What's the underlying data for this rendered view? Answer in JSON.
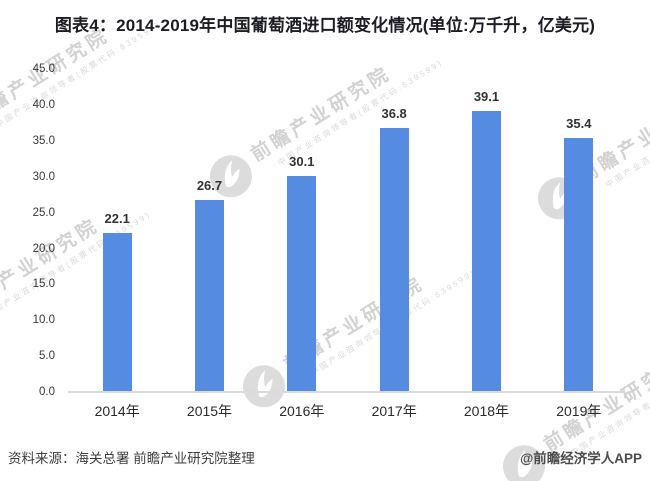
{
  "title": "图表4：2014-2019年中国葡萄酒进口额变化情况(单位:万千升，亿美元)",
  "chart_data": {
    "type": "bar",
    "categories": [
      "2014年",
      "2015年",
      "2016年",
      "2017年",
      "2018年",
      "2019年"
    ],
    "values": [
      22.1,
      26.7,
      30.1,
      36.8,
      39.1,
      35.4
    ],
    "data_labels": [
      "22.1",
      "26.7",
      "30.1",
      "36.8",
      "39.1",
      "35.4"
    ],
    "yticks": [
      "45.0",
      "40.0",
      "35.0",
      "30.0",
      "25.0",
      "20.0",
      "15.0",
      "10.0",
      "5.0",
      "0.0"
    ],
    "ylim": [
      0,
      45
    ],
    "grid": false,
    "legend": "none",
    "bar_color": "#568be2",
    "xlabel": "",
    "ylabel": ""
  },
  "footer": {
    "source": "资料来源：海关总署 前瞻产业研究院整理",
    "credit": "@前瞻经济学人APP"
  },
  "watermark": {
    "text": "前瞻产业研究院",
    "subtext": "中国产业咨询领导者(股票代码:839599)",
    "logo": "qianzhan-bird-logo",
    "color": "#cbcbcb"
  },
  "colors": {
    "bar": "#568be2",
    "axis_line": "#dadada",
    "title_text": "#1c1c24"
  }
}
